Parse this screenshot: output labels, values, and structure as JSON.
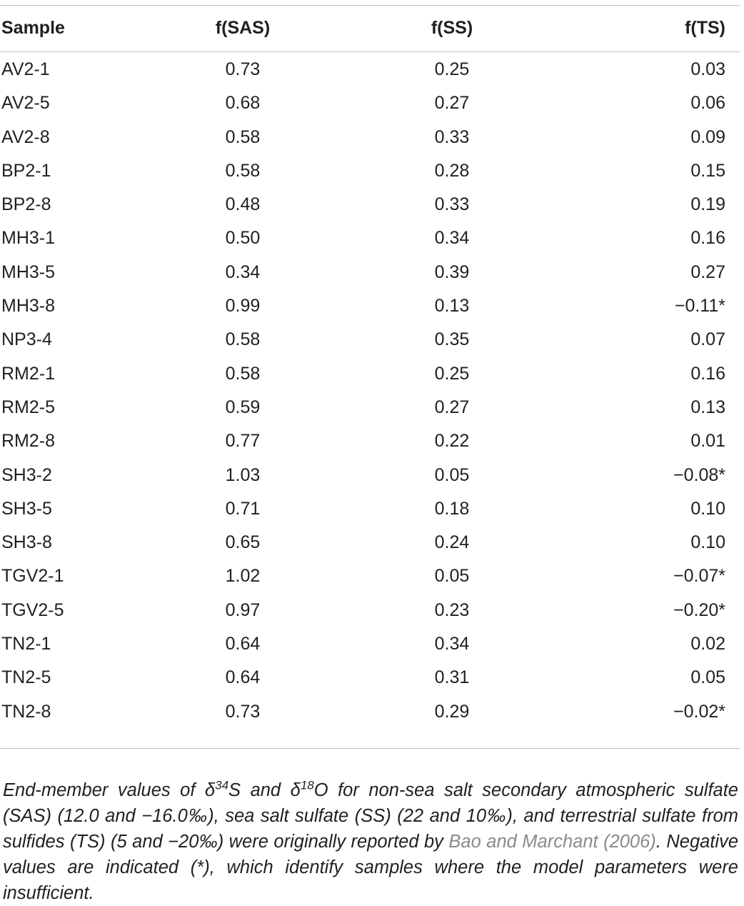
{
  "table": {
    "headers": [
      "Sample",
      "f(SAS)",
      "f(SS)",
      "f(TS)"
    ],
    "rows": [
      [
        "AV2-1",
        "0.73",
        "0.25",
        "0.03"
      ],
      [
        "AV2-5",
        "0.68",
        "0.27",
        "0.06"
      ],
      [
        "AV2-8",
        "0.58",
        "0.33",
        "0.09"
      ],
      [
        "BP2-1",
        "0.58",
        "0.28",
        "0.15"
      ],
      [
        "BP2-8",
        "0.48",
        "0.33",
        "0.19"
      ],
      [
        "MH3-1",
        "0.50",
        "0.34",
        "0.16"
      ],
      [
        "MH3-5",
        "0.34",
        "0.39",
        "0.27"
      ],
      [
        "MH3-8",
        "0.99",
        "0.13",
        "−0.11*"
      ],
      [
        "NP3-4",
        "0.58",
        "0.35",
        "0.07"
      ],
      [
        "RM2-1",
        "0.58",
        "0.25",
        "0.16"
      ],
      [
        "RM2-5",
        "0.59",
        "0.27",
        "0.13"
      ],
      [
        "RM2-8",
        "0.77",
        "0.22",
        "0.01"
      ],
      [
        "SH3-2",
        "1.03",
        "0.05",
        "−0.08*"
      ],
      [
        "SH3-5",
        "0.71",
        "0.18",
        "0.10"
      ],
      [
        "SH3-8",
        "0.65",
        "0.24",
        "0.10"
      ],
      [
        "TGV2-1",
        "1.02",
        "0.05",
        "−0.07*"
      ],
      [
        "TGV2-5",
        "0.97",
        "0.23",
        "−0.20*"
      ],
      [
        "TN2-1",
        "0.64",
        "0.34",
        "0.02"
      ],
      [
        "TN2-5",
        "0.64",
        "0.31",
        "0.05"
      ],
      [
        "TN2-8",
        "0.73",
        "0.29",
        "−0.02*"
      ]
    ]
  },
  "footnote": {
    "part1": "End-member values of δ",
    "sup1": "34",
    "part2": "S and δ",
    "sup2": "18",
    "part3": "O for non-sea salt secondary atmospheric sulfate (SAS) (12.0 and −16.0‰), sea salt sulfate (SS) (22 and 10‰), and terrestrial sulfate from sulfides (TS) (5 and −20‰) were originally reported by ",
    "citation": "Bao and Marchant (2006)",
    "part4": ". Negative values are indicated (*), which identify samples where the model parameters were insufficient."
  }
}
